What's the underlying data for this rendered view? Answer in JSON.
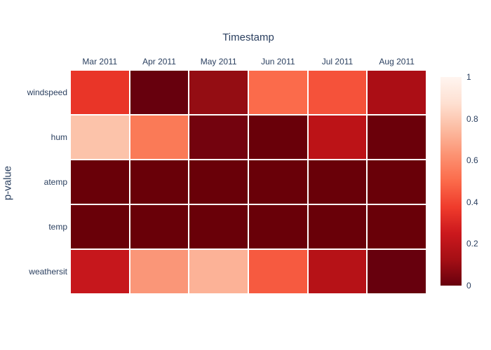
{
  "figure": {
    "title": "Timestamp",
    "y_axis_title": "p-value",
    "text_color": "#2a3f5f",
    "background_color": "#ffffff"
  },
  "chart_data": {
    "type": "heatmap",
    "title": "Timestamp",
    "xlabel": "Timestamp",
    "ylabel": "p-value",
    "x_categories": [
      "Mar 2011",
      "Apr 2011",
      "May 2011",
      "Jun 2011",
      "Jul 2011",
      "Aug 2011"
    ],
    "y_categories": [
      "windspeed",
      "hum",
      "atemp",
      "temp",
      "weathersit"
    ],
    "series": [
      {
        "name": "windspeed",
        "values": [
          0.37,
          0.01,
          0.09,
          0.5,
          0.44,
          0.13
        ]
      },
      {
        "name": "hum",
        "values": [
          0.77,
          0.55,
          0.03,
          0.01,
          0.21,
          0.02
        ]
      },
      {
        "name": "atemp",
        "values": [
          0.01,
          0.01,
          0.01,
          0.01,
          0.01,
          0.01
        ]
      },
      {
        "name": "temp",
        "values": [
          0.01,
          0.01,
          0.01,
          0.01,
          0.01,
          0.01
        ]
      },
      {
        "name": "weathersit",
        "values": [
          0.24,
          0.63,
          0.72,
          0.46,
          0.18,
          0.01
        ]
      }
    ],
    "cell_colors": [
      [
        "#e93528",
        "#67000d",
        "#940d13",
        "#fb6b4b",
        "#f5523a",
        "#ab0e15"
      ],
      [
        "#fcc3aa",
        "#fa7a57",
        "#73030e",
        "#690009",
        "#bc1317",
        "#6b000a"
      ],
      [
        "#690008",
        "#690008",
        "#690008",
        "#690008",
        "#690008",
        "#690008"
      ],
      [
        "#690008",
        "#690008",
        "#690008",
        "#690008",
        "#690008",
        "#690008"
      ],
      [
        "#c6171c",
        "#fa9678",
        "#fcb297",
        "#f65a40",
        "#b61217",
        "#67000d"
      ]
    ],
    "colorscale_name": "Reds reversed",
    "colorscale_stops": [
      "#fff5f0",
      "#fee0d2",
      "#fcbba1",
      "#fc9272",
      "#fb6a4a",
      "#ef3b2c",
      "#cb181d",
      "#a50f15",
      "#67000d"
    ],
    "zmin": 0,
    "zmax": 1,
    "colorbar_ticks": [
      {
        "label": "1",
        "value": 1.0
      },
      {
        "label": "0.8",
        "value": 0.8
      },
      {
        "label": "0.6",
        "value": 0.6
      },
      {
        "label": "0.4",
        "value": 0.4
      },
      {
        "label": "0.2",
        "value": 0.2
      },
      {
        "label": "0",
        "value": 0.0
      }
    ],
    "grid": false,
    "legend_position": "right-colorbar"
  }
}
